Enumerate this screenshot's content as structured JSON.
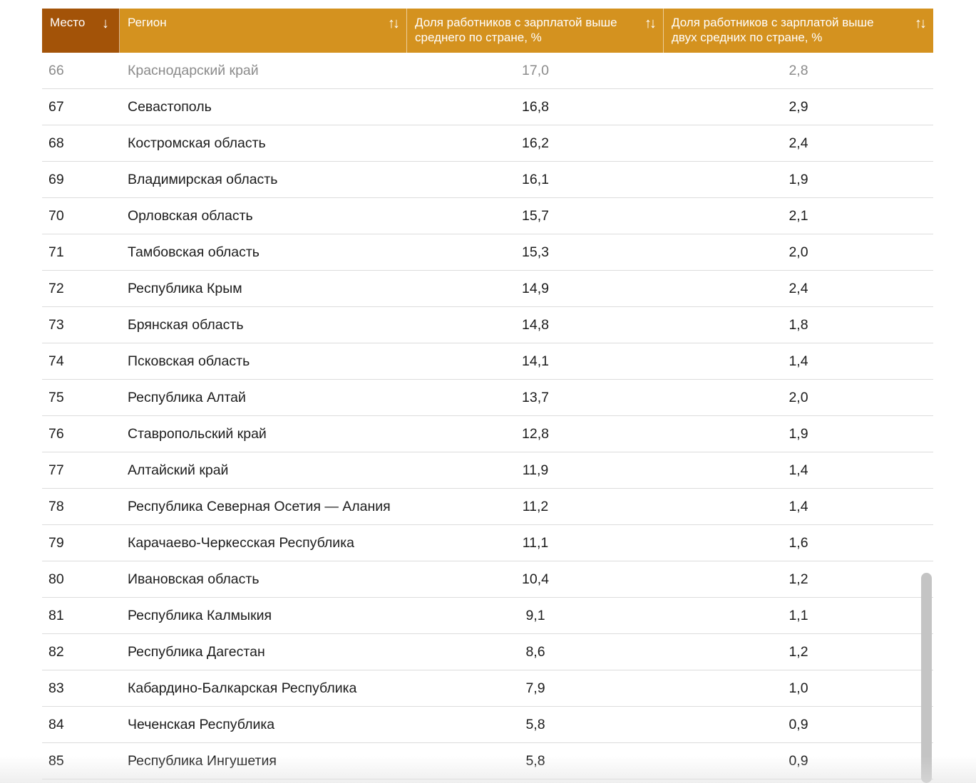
{
  "table": {
    "headers": [
      {
        "label": "Место",
        "sort": "↓"
      },
      {
        "label": "Регион",
        "sort": "↑↓"
      },
      {
        "label": "Доля работников с зарплатой выше среднего по стране, %",
        "sort": "↑↓"
      },
      {
        "label": "Доля работников с зарплатой выше двух средних по стране, %",
        "sort": "↑↓"
      }
    ],
    "rows": [
      {
        "rank": "66",
        "region": "Краснодарский край",
        "above_avg": "17,0",
        "above_two_avg": "2,8"
      },
      {
        "rank": "67",
        "region": "Севастополь",
        "above_avg": "16,8",
        "above_two_avg": "2,9"
      },
      {
        "rank": "68",
        "region": "Костромская область",
        "above_avg": "16,2",
        "above_two_avg": "2,4"
      },
      {
        "rank": "69",
        "region": "Владимирская область",
        "above_avg": "16,1",
        "above_two_avg": "1,9"
      },
      {
        "rank": "70",
        "region": "Орловская область",
        "above_avg": "15,7",
        "above_two_avg": "2,1"
      },
      {
        "rank": "71",
        "region": "Тамбовская область",
        "above_avg": "15,3",
        "above_two_avg": "2,0"
      },
      {
        "rank": "72",
        "region": "Республика Крым",
        "above_avg": "14,9",
        "above_two_avg": "2,4"
      },
      {
        "rank": "73",
        "region": "Брянская область",
        "above_avg": "14,8",
        "above_two_avg": "1,8"
      },
      {
        "rank": "74",
        "region": "Псковская область",
        "above_avg": "14,1",
        "above_two_avg": "1,4"
      },
      {
        "rank": "75",
        "region": "Республика Алтай",
        "above_avg": "13,7",
        "above_two_avg": "2,0"
      },
      {
        "rank": "76",
        "region": "Ставропольский край",
        "above_avg": "12,8",
        "above_two_avg": "1,9"
      },
      {
        "rank": "77",
        "region": "Алтайский край",
        "above_avg": "11,9",
        "above_two_avg": "1,4"
      },
      {
        "rank": "78",
        "region": "Республика Северная Осетия — Алания",
        "above_avg": "11,2",
        "above_two_avg": "1,4"
      },
      {
        "rank": "79",
        "region": "Карачаево-Черкесская Республика",
        "above_avg": "11,1",
        "above_two_avg": "1,6"
      },
      {
        "rank": "80",
        "region": "Ивановская область",
        "above_avg": "10,4",
        "above_two_avg": "1,2"
      },
      {
        "rank": "81",
        "region": "Республика Калмыкия",
        "above_avg": "9,1",
        "above_two_avg": "1,1"
      },
      {
        "rank": "82",
        "region": "Республика Дагестан",
        "above_avg": "8,6",
        "above_two_avg": "1,2"
      },
      {
        "rank": "83",
        "region": "Кабардино-Балкарская Республика",
        "above_avg": "7,9",
        "above_two_avg": "1,0"
      },
      {
        "rank": "84",
        "region": "Чеченская Республика",
        "above_avg": "5,8",
        "above_two_avg": "0,9"
      },
      {
        "rank": "85",
        "region": "Республика Ингушетия",
        "above_avg": "5,8",
        "above_two_avg": "0,9"
      }
    ]
  },
  "colors": {
    "header_bg": "#d4921f",
    "header_active_bg": "#a35308",
    "header_text": "#ffffff",
    "row_divider": "#dcdcdc",
    "faded_text": "#8b8b8b"
  }
}
